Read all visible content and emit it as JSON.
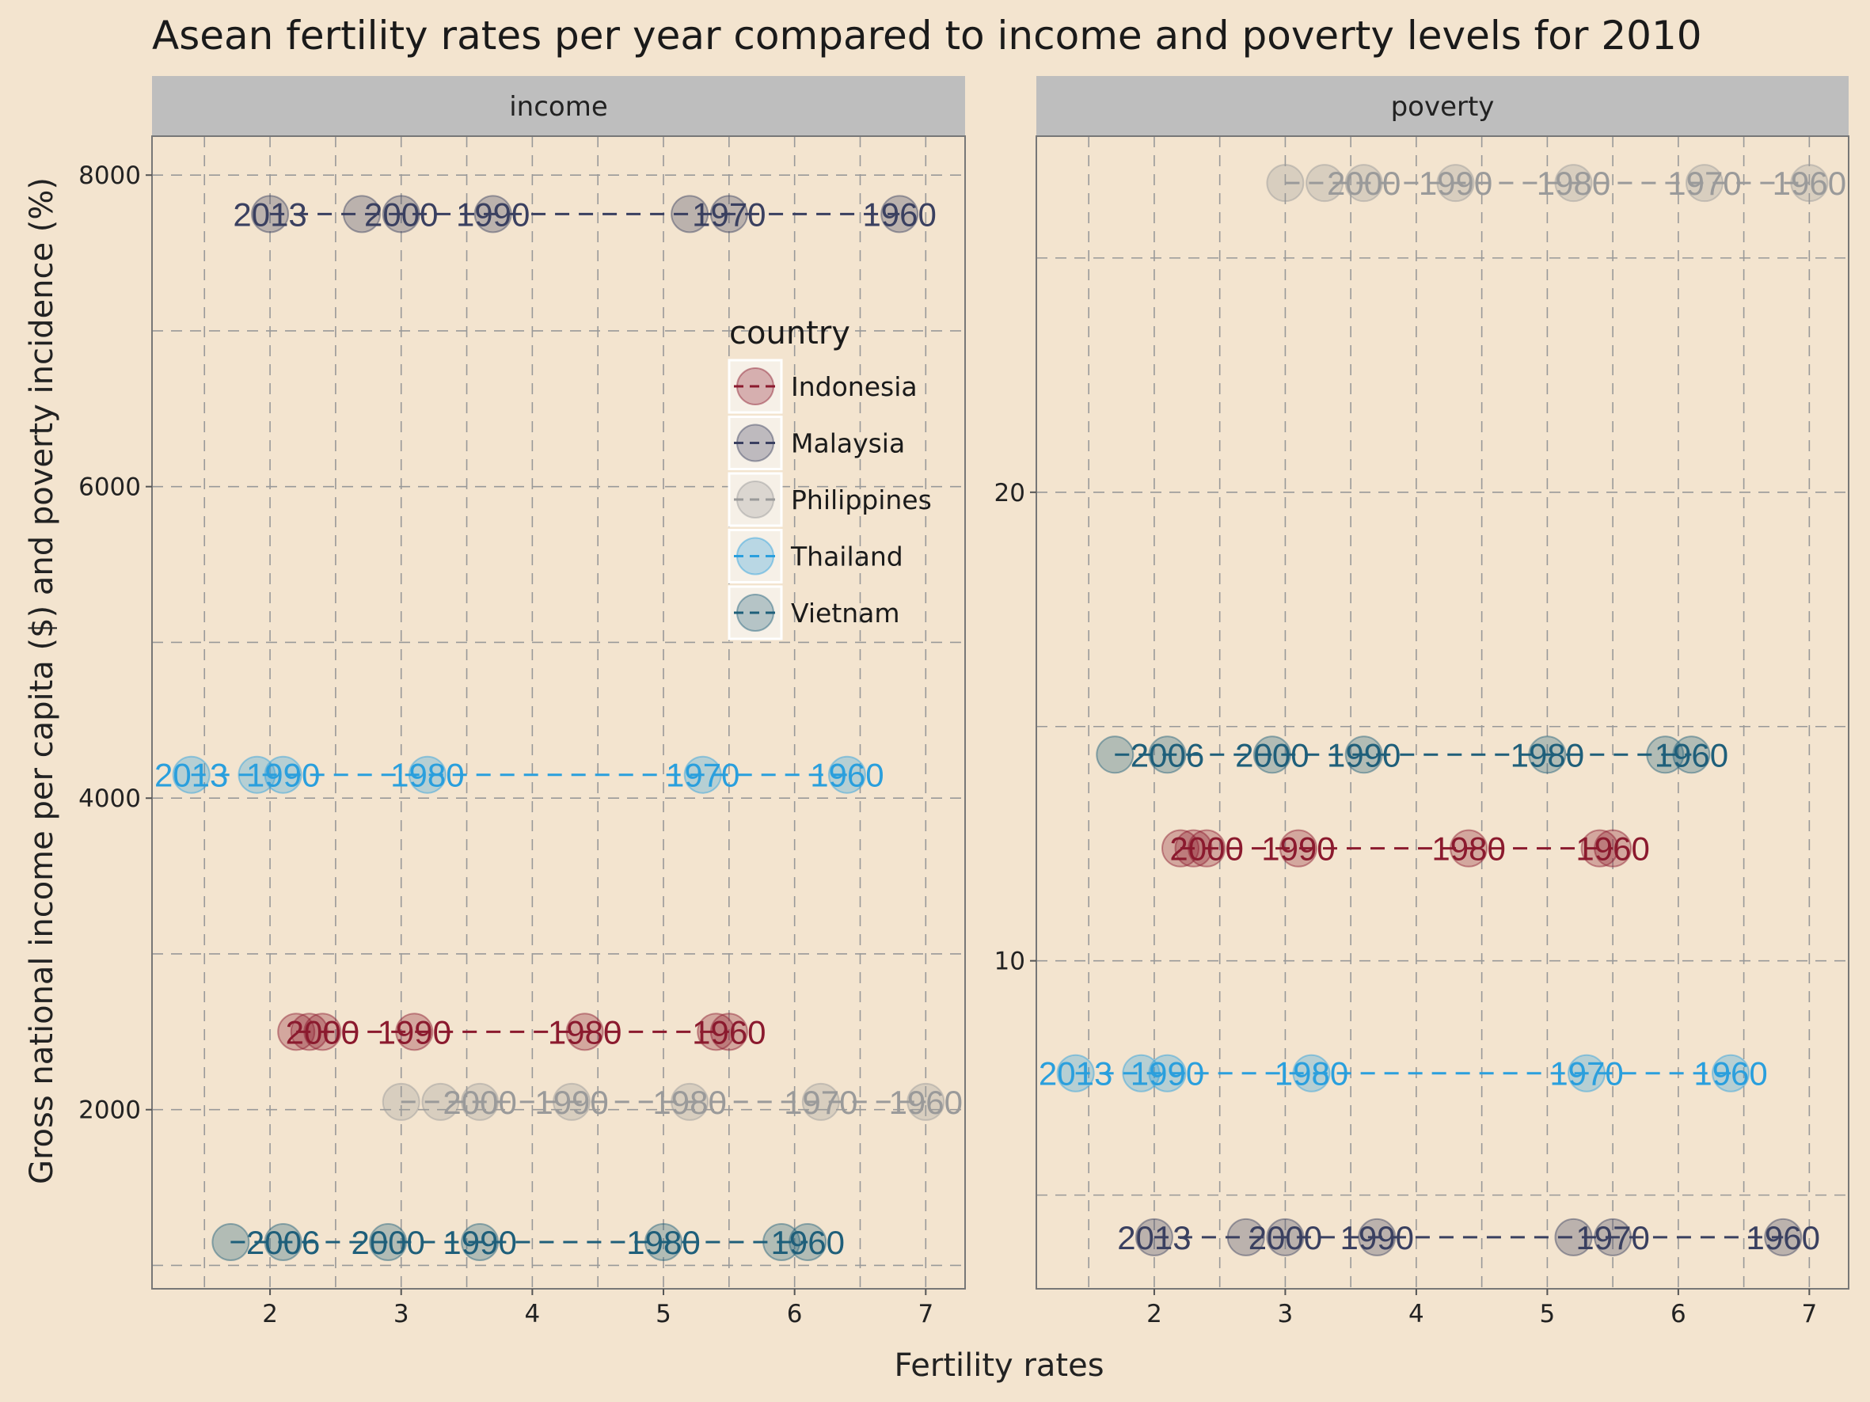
{
  "chart_data": {
    "type": "scatter",
    "title": "Asean fertility rates per year compared to income and poverty levels for 2010",
    "xlabel": "Fertility rates",
    "ylabel": "Gross national income per capita ($) and poverty incidence (%)",
    "grid": true,
    "legend": {
      "title": "country",
      "placement": "inside-left-panel-top-right",
      "entries": [
        "Indonesia",
        "Malaysia",
        "Philippines",
        "Thailand",
        "Vietnam"
      ]
    },
    "colors": {
      "Indonesia": "#8b1a2e",
      "Malaysia": "#3a4060",
      "Philippines": "#9a9a9a",
      "Thailand": "#2a9fdd",
      "Vietnam": "#1f5f7a"
    },
    "panels": [
      {
        "name": "income",
        "xlim": [
          1.1,
          7.3
        ],
        "ylim": [
          850,
          8250
        ],
        "xticks": [
          2,
          3,
          4,
          5,
          6,
          7
        ],
        "yticks": [
          2000,
          4000,
          6000,
          8000
        ],
        "series": [
          {
            "name": "Malaysia",
            "y": 7750,
            "x": [
              6.8,
              5.5,
              5.2,
              3.7,
              3.0,
              2.7,
              2.0
            ],
            "labels": [
              "1960",
              "1970",
              "",
              "1990",
              "2000",
              "",
              "2013"
            ]
          },
          {
            "name": "Thailand",
            "y": 4150,
            "x": [
              6.4,
              5.3,
              3.2,
              2.1,
              1.9,
              1.4
            ],
            "labels": [
              "1960",
              "1970",
              "1980",
              "1990",
              "",
              "2013"
            ]
          },
          {
            "name": "Indonesia",
            "y": 2500,
            "x": [
              5.5,
              5.4,
              4.4,
              3.1,
              2.4,
              2.3,
              2.2
            ],
            "labels": [
              "1960",
              "",
              "1980",
              "1990",
              "2000",
              "",
              ""
            ]
          },
          {
            "name": "Philippines",
            "y": 2050,
            "x": [
              7.0,
              6.2,
              5.2,
              4.3,
              3.6,
              3.3,
              3.0
            ],
            "labels": [
              "1960",
              "1970",
              "1980",
              "1990",
              "2000",
              "",
              ""
            ]
          },
          {
            "name": "Vietnam",
            "y": 1150,
            "x": [
              6.1,
              5.9,
              5.0,
              3.6,
              2.9,
              2.1,
              1.7
            ],
            "labels": [
              "1960",
              "",
              "1980",
              "1990",
              "2000",
              "2006",
              ""
            ]
          }
        ]
      },
      {
        "name": "poverty",
        "xlim": [
          1.1,
          7.3
        ],
        "ylim": [
          3.0,
          27.6
        ],
        "xticks": [
          2,
          3,
          4,
          5,
          6,
          7
        ],
        "yticks": [
          10,
          20
        ],
        "series": [
          {
            "name": "Philippines",
            "y": 26.6,
            "x": [
              7.0,
              6.2,
              5.2,
              4.3,
              3.6,
              3.3,
              3.0
            ],
            "labels": [
              "1960",
              "1970",
              "1980",
              "1990",
              "2000",
              "",
              ""
            ]
          },
          {
            "name": "Vietnam",
            "y": 14.4,
            "x": [
              6.1,
              5.9,
              5.0,
              3.6,
              2.9,
              2.1,
              1.7
            ],
            "labels": [
              "1960",
              "",
              "1980",
              "1990",
              "2000",
              "2006",
              ""
            ]
          },
          {
            "name": "Indonesia",
            "y": 12.4,
            "x": [
              5.5,
              5.4,
              4.4,
              3.1,
              2.4,
              2.3,
              2.2
            ],
            "labels": [
              "1960",
              "",
              "1980",
              "1990",
              "2000",
              "",
              ""
            ]
          },
          {
            "name": "Thailand",
            "y": 7.6,
            "x": [
              6.4,
              5.3,
              3.2,
              2.1,
              1.9,
              1.4
            ],
            "labels": [
              "1960",
              "1970",
              "1980",
              "1990",
              "",
              "2013"
            ]
          },
          {
            "name": "Malaysia",
            "y": 4.1,
            "x": [
              6.8,
              5.5,
              5.2,
              3.7,
              3.0,
              2.7,
              2.0
            ],
            "labels": [
              "1960",
              "1970",
              "",
              "1990",
              "2000",
              "",
              "2013"
            ]
          }
        ]
      }
    ]
  }
}
